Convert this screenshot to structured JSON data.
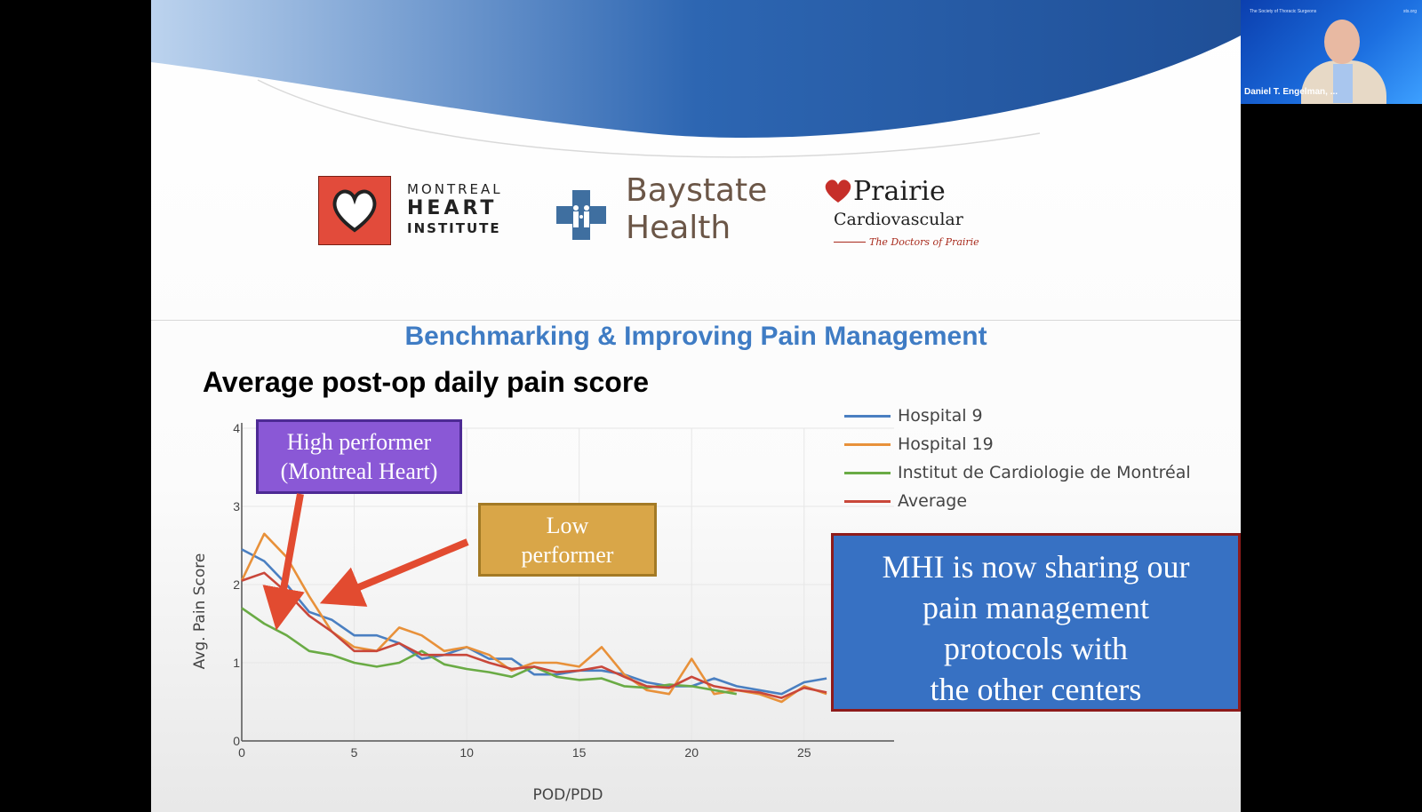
{
  "slide": {
    "title": "Benchmarking & Improving Pain Management",
    "subtitle": "Average post-op daily pain score",
    "logos": {
      "montreal": {
        "line1": "MONTREAL",
        "line2": "HEART",
        "line3": "INSTITUTE"
      },
      "baystate": {
        "line1": "Baystate",
        "line2": "Health"
      },
      "prairie": {
        "line1": "Prairie",
        "line2": "Cardiovascular",
        "line3": "The Doctors of Prairie"
      }
    },
    "callouts": {
      "high": [
        "High performer",
        "(Montreal Heart)"
      ],
      "low": [
        "Low",
        "performer"
      ],
      "mhi": [
        "MHI is now sharing our",
        "pain management",
        "protocols with",
        "the other centers"
      ]
    }
  },
  "chart_data": {
    "type": "line",
    "title": "",
    "xlabel": "POD/PDD",
    "ylabel": "Avg. Pain Score",
    "xlim": [
      0,
      29
    ],
    "ylim": [
      0,
      4
    ],
    "x_ticks": [
      "0",
      "5",
      "10",
      "15",
      "20",
      "25"
    ],
    "y_ticks": [
      "0",
      "1",
      "2",
      "3",
      "4"
    ],
    "legend_position": "top-right",
    "series": [
      {
        "name": "Hospital 9",
        "color": "#4a7fc1",
        "x": [
          0,
          1,
          2,
          3,
          4,
          5,
          6,
          7,
          8,
          9,
          10,
          11,
          12,
          13,
          14,
          15,
          16,
          17,
          18,
          19,
          20,
          21,
          22,
          23,
          24,
          25,
          26
        ],
        "y": [
          2.45,
          2.3,
          2.0,
          1.65,
          1.55,
          1.35,
          1.35,
          1.25,
          1.05,
          1.1,
          1.2,
          1.05,
          1.05,
          0.85,
          0.85,
          0.9,
          0.9,
          0.85,
          0.75,
          0.7,
          0.7,
          0.8,
          0.7,
          0.65,
          0.6,
          0.75,
          0.8
        ]
      },
      {
        "name": "Hospital 19",
        "color": "#e8913a",
        "x": [
          0,
          1,
          2,
          3,
          4,
          5,
          6,
          7,
          8,
          9,
          10,
          11,
          12,
          13,
          14,
          15,
          16,
          17,
          18,
          19,
          20,
          21,
          22,
          23,
          24,
          25,
          26
        ],
        "y": [
          2.05,
          2.65,
          2.35,
          1.85,
          1.4,
          1.2,
          1.15,
          1.45,
          1.35,
          1.15,
          1.2,
          1.1,
          0.9,
          1.0,
          1.0,
          0.95,
          1.2,
          0.85,
          0.65,
          0.6,
          1.05,
          0.6,
          0.65,
          0.6,
          0.5,
          0.7,
          0.6
        ]
      },
      {
        "name": "Institut de Cardiologie de Montréal",
        "color": "#6aab45",
        "x": [
          0,
          1,
          2,
          3,
          4,
          5,
          6,
          7,
          8,
          9,
          10,
          11,
          12,
          13,
          14,
          15,
          16,
          17,
          18,
          19,
          20,
          21,
          22
        ],
        "y": [
          1.7,
          1.5,
          1.35,
          1.15,
          1.1,
          1.0,
          0.95,
          1.0,
          1.15,
          0.98,
          0.92,
          0.88,
          0.82,
          0.95,
          0.82,
          0.78,
          0.8,
          0.7,
          0.68,
          0.72,
          0.7,
          0.65,
          0.6
        ]
      },
      {
        "name": "Average",
        "color": "#c9473a",
        "x": [
          0,
          1,
          2,
          3,
          4,
          5,
          6,
          7,
          8,
          9,
          10,
          11,
          12,
          13,
          14,
          15,
          16,
          17,
          18,
          19,
          20,
          21,
          22,
          23,
          24,
          25,
          26
        ],
        "y": [
          2.05,
          2.15,
          1.9,
          1.6,
          1.4,
          1.15,
          1.15,
          1.25,
          1.1,
          1.1,
          1.1,
          1.0,
          0.92,
          0.95,
          0.88,
          0.9,
          0.95,
          0.82,
          0.7,
          0.68,
          0.82,
          0.7,
          0.65,
          0.62,
          0.55,
          0.68,
          0.62
        ]
      }
    ]
  },
  "video_tile": {
    "participant_name": "Daniel T. Engelman, ...",
    "org_label": "The Society of Thoracic Surgeons",
    "web_label": "sts.org"
  }
}
